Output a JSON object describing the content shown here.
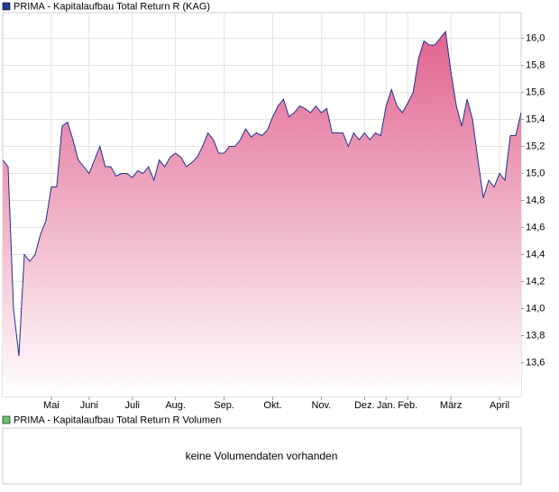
{
  "chart_data": {
    "type": "area",
    "legend": "PRIMA - Kapitalaufbau Total Return R (KAG)",
    "series": [
      {
        "name": "PRIMA - Kapitalaufbau Total Return R (KAG)",
        "color": "#1f2f8f",
        "values": [
          15.1,
          15.05,
          14.0,
          13.65,
          14.4,
          14.35,
          14.4,
          14.55,
          14.65,
          14.9,
          14.9,
          15.35,
          15.38,
          15.25,
          15.1,
          15.05,
          15.0,
          15.1,
          15.2,
          15.05,
          15.05,
          14.98,
          15.0,
          15.0,
          14.97,
          15.02,
          15.0,
          15.05,
          14.95,
          15.1,
          15.05,
          15.12,
          15.15,
          15.12,
          15.05,
          15.08,
          15.12,
          15.2,
          15.3,
          15.25,
          15.15,
          15.15,
          15.2,
          15.2,
          15.25,
          15.33,
          15.27,
          15.3,
          15.28,
          15.32,
          15.42,
          15.5,
          15.55,
          15.42,
          15.45,
          15.5,
          15.48,
          15.45,
          15.5,
          15.45,
          15.48,
          15.3,
          15.3,
          15.3,
          15.2,
          15.3,
          15.25,
          15.3,
          15.25,
          15.3,
          15.28,
          15.5,
          15.62,
          15.5,
          15.45,
          15.52,
          15.6,
          15.85,
          15.98,
          15.95,
          15.95,
          16.0,
          16.05,
          15.75,
          15.5,
          15.35,
          15.55,
          15.4,
          15.1,
          14.82,
          14.95,
          14.9,
          15.0,
          14.95,
          15.28,
          15.28,
          15.45
        ]
      }
    ],
    "categories": [
      null,
      null,
      null,
      null,
      null,
      null,
      null,
      null,
      null,
      "Mai",
      null,
      null,
      null,
      null,
      null,
      null,
      "Juni",
      null,
      null,
      null,
      null,
      null,
      null,
      null,
      "Juli",
      null,
      null,
      null,
      null,
      null,
      null,
      null,
      "Aug.",
      null,
      null,
      null,
      null,
      null,
      null,
      null,
      null,
      "Sep.",
      null,
      null,
      null,
      null,
      null,
      null,
      null,
      null,
      "Okt.",
      null,
      null,
      null,
      null,
      null,
      null,
      null,
      null,
      "Nov.",
      null,
      null,
      null,
      null,
      null,
      null,
      null,
      "Dez.",
      null,
      null,
      null,
      "Jan.",
      null,
      null,
      null,
      "Feb.",
      null,
      null,
      null,
      null,
      null,
      null,
      null,
      "März",
      null,
      null,
      null,
      null,
      null,
      null,
      null,
      null,
      "April",
      null,
      null,
      null,
      null
    ],
    "ylim": [
      13.35,
      16.19
    ],
    "yticks": [
      {
        "value": 13.6,
        "label": "13,6"
      },
      {
        "value": 13.8,
        "label": "13,8"
      },
      {
        "value": 14.0,
        "label": "14,0"
      },
      {
        "value": 14.2,
        "label": "14,2"
      },
      {
        "value": 14.4,
        "label": "14,4"
      },
      {
        "value": 14.6,
        "label": "14,6"
      },
      {
        "value": 14.8,
        "label": "14,8"
      },
      {
        "value": 15.0,
        "label": "15,0"
      },
      {
        "value": 15.2,
        "label": "15,2"
      },
      {
        "value": 15.4,
        "label": "15,4"
      },
      {
        "value": 15.6,
        "label": "15,6"
      },
      {
        "value": 15.8,
        "label": "15,8"
      },
      {
        "value": 16.0,
        "label": "16,0"
      }
    ],
    "grid": true
  },
  "volume": {
    "legend": "PRIMA - Kapitalaufbau Total Return R Volumen",
    "message": "keine Volumendaten vorhanden"
  }
}
